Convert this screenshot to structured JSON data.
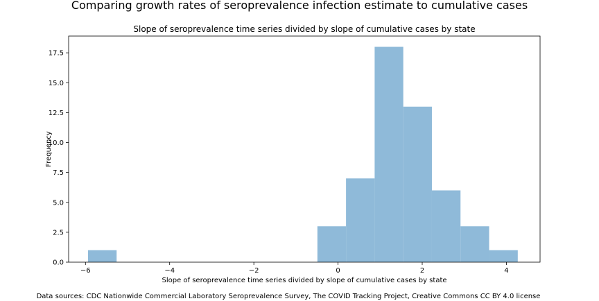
{
  "suptitle": "Comparing growth rates of seroprevalence infection estimate to cumulative cases",
  "source_note": "Data sources: CDC Nationwide Commercial Laboratory Seroprevalence Survey, The COVID Tracking Project, Creative Commons CC BY 4.0 license",
  "chart_data": {
    "type": "histogram",
    "title": "Slope of seroprevalence time series divided by slope of cumulative cases by state",
    "xlabel": "Slope of seroprevalence time series divided by slope of cumulative cases by state",
    "ylabel": "Frequency",
    "xlim": [
      -6.4,
      4.8
    ],
    "ylim": [
      0,
      18.9
    ],
    "xticks": [
      -6,
      -4,
      -2,
      0,
      2,
      4
    ],
    "yticks": [
      0.0,
      2.5,
      5.0,
      7.5,
      10.0,
      12.5,
      15.0,
      17.5
    ],
    "bar_color": "#8fbad9",
    "bins": [
      {
        "x0": -5.94,
        "x1": -5.26,
        "count": 1
      },
      {
        "x0": -0.49,
        "x1": 0.19,
        "count": 3
      },
      {
        "x0": 0.19,
        "x1": 0.87,
        "count": 7
      },
      {
        "x0": 0.87,
        "x1": 1.55,
        "count": 18
      },
      {
        "x0": 1.55,
        "x1": 2.23,
        "count": 13
      },
      {
        "x0": 2.23,
        "x1": 2.91,
        "count": 6
      },
      {
        "x0": 2.91,
        "x1": 3.59,
        "count": 3
      },
      {
        "x0": 3.59,
        "x1": 4.27,
        "count": 1
      }
    ]
  }
}
